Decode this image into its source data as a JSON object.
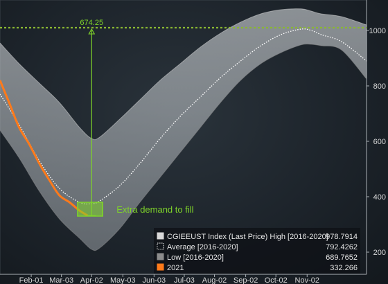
{
  "chart_data": {
    "type": "area",
    "title": "",
    "xlabel": "",
    "ylabel": "",
    "ylim": [
      120,
      1110
    ],
    "xlim": [
      1,
      365
    ],
    "x_ticks": [
      {
        "day": 32,
        "label": "Feb-01"
      },
      {
        "day": 62,
        "label": "Mar-03"
      },
      {
        "day": 92,
        "label": "Apr-02"
      },
      {
        "day": 123,
        "label": "May-03"
      },
      {
        "day": 154,
        "label": "Jun-03"
      },
      {
        "day": 184,
        "label": "Jul-03"
      },
      {
        "day": 214,
        "label": "Aug-02"
      },
      {
        "day": 245,
        "label": "Sep-02"
      },
      {
        "day": 275,
        "label": "Oct-02"
      },
      {
        "day": 306,
        "label": "Nov-02"
      }
    ],
    "y_ticks": [
      200,
      400,
      600,
      800,
      1000
    ],
    "grid": false,
    "legend_position": "bottom-right",
    "reference_line": {
      "value": 1010,
      "color": "#8ab832",
      "style": "dotted"
    },
    "series": [
      {
        "name": "CGIEEUST Index (Last Price) High [2016-2020]",
        "last": "978.7914",
        "color": "#d9d9d9",
        "x": [
          1,
          20,
          40,
          60,
          80,
          92,
          100,
          120,
          140,
          160,
          180,
          200,
          220,
          240,
          260,
          280,
          300,
          310,
          320,
          340,
          365
        ],
        "values": [
          955,
          880,
          810,
          740,
          650,
          610,
          615,
          680,
          750,
          820,
          880,
          940,
          990,
          1030,
          1060,
          1075,
          1078,
          1070,
          1060,
          1050,
          1020
        ]
      },
      {
        "name": "Average  [2016-2020]",
        "last": "792.4262",
        "color": "#ffffff",
        "x": [
          1,
          20,
          40,
          60,
          80,
          92,
          100,
          120,
          140,
          160,
          180,
          200,
          220,
          240,
          260,
          280,
          300,
          310,
          320,
          340,
          365
        ],
        "values": [
          770,
          660,
          530,
          430,
          380,
          375,
          385,
          440,
          520,
          610,
          690,
          760,
          830,
          890,
          945,
          985,
          1005,
          1000,
          985,
          960,
          890
        ]
      },
      {
        "name": "Low  [2016-2020]",
        "last": "689.7652",
        "color": "#8c8c8c",
        "x": [
          1,
          20,
          40,
          60,
          80,
          92,
          100,
          120,
          140,
          160,
          180,
          200,
          220,
          240,
          260,
          280,
          300,
          310,
          320,
          340,
          365
        ],
        "values": [
          640,
          540,
          420,
          320,
          250,
          210,
          215,
          285,
          380,
          470,
          560,
          650,
          740,
          820,
          880,
          920,
          948,
          950,
          945,
          930,
          825
        ]
      },
      {
        "name": "2021",
        "last": "332.266",
        "color": "#ff7a1a",
        "x": [
          1,
          10,
          20,
          30,
          40,
          50,
          60,
          70,
          80,
          88
        ],
        "values": [
          820,
          740,
          650,
          590,
          520,
          460,
          405,
          380,
          350,
          332
        ]
      }
    ],
    "annotations": [
      {
        "text": "674.25",
        "kind": "vertical-gap",
        "x": 92,
        "from": 332,
        "to": 1010,
        "color": "#7fd32a"
      },
      {
        "text": "Extra demand to fill",
        "kind": "box",
        "x_range": [
          78,
          103
        ],
        "y_range": [
          330,
          380
        ],
        "color": "#7fd32a"
      }
    ]
  }
}
